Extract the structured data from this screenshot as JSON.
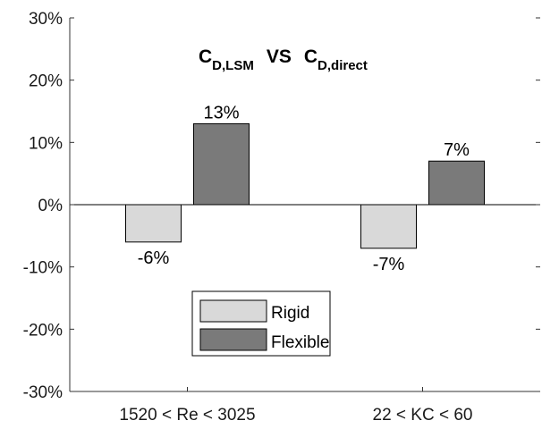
{
  "chart_data": {
    "type": "bar",
    "title": {
      "part1_main": "C",
      "part1_sub": "D,LSM",
      "connector": "VS",
      "part2_main": "C",
      "part2_sub": "D,direct"
    },
    "categories": [
      "1520 < Re < 3025",
      "22 < KC < 60"
    ],
    "series": [
      {
        "name": "Rigid",
        "values": [
          -6,
          -7
        ],
        "labels": [
          "-6%",
          "-7%"
        ],
        "color": "#d9d9d9"
      },
      {
        "name": "Flexible",
        "values": [
          13,
          7
        ],
        "labels": [
          "13%",
          "7%"
        ],
        "color": "#7a7a7a"
      }
    ],
    "ylim": [
      -30,
      30
    ],
    "yticks": [
      "-30%",
      "-20%",
      "-10%",
      "0%",
      "10%",
      "20%",
      "30%"
    ],
    "ytick_values": [
      -30,
      -20,
      -10,
      0,
      10,
      20,
      30
    ],
    "xlabel": "",
    "ylabel": "",
    "grid": false,
    "legend_position": "bottom-center"
  }
}
